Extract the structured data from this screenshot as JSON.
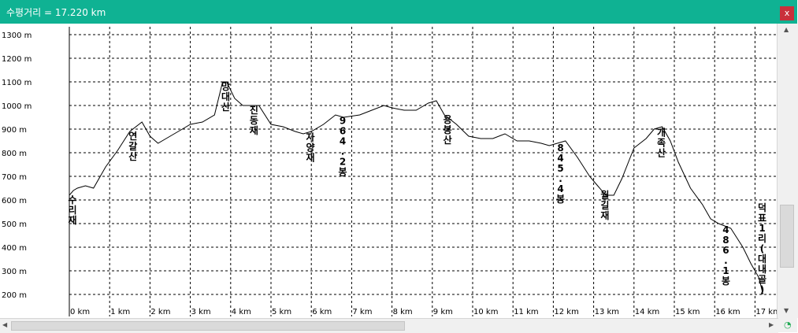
{
  "window": {
    "title": "수평거리 = 17.220 km",
    "close_label": "x",
    "accent_color": "#0fb293",
    "close_color": "#c9303b"
  },
  "chart_data": {
    "type": "line",
    "title": "",
    "xlabel": "",
    "ylabel": "",
    "x_unit": "km",
    "y_unit": "m",
    "xlim": [
      0,
      17.22
    ],
    "ylim": [
      180,
      1320
    ],
    "grid": true,
    "x_ticks": [
      0,
      1,
      2,
      3,
      4,
      5,
      6,
      7,
      8,
      9,
      10,
      11,
      12,
      13,
      14,
      15,
      16,
      17
    ],
    "x_tick_labels": [
      "0 km",
      "1 km",
      "2 km",
      "3 km",
      "4 km",
      "5 km",
      "6 km",
      "7 km",
      "8 km",
      "9 km",
      "10 km",
      "11 km",
      "12 km",
      "13 km",
      "14 km",
      "15 km",
      "16 km",
      "17 km"
    ],
    "y_ticks": [
      1300,
      1200,
      1100,
      1000,
      900,
      800,
      700,
      600,
      500,
      400,
      300,
      200
    ],
    "y_tick_labels": [
      "1300 m",
      "1200 m",
      "1100 m",
      "1000 m",
      "900 m",
      "800 m",
      "700 m",
      "600 m",
      "500 m",
      "400 m",
      "300 m",
      "200 m"
    ],
    "series": [
      {
        "line_color": "#000000",
        "x": [
          0,
          0.1,
          0.2,
          0.4,
          0.6,
          0.9,
          1.2,
          1.5,
          1.8,
          2.0,
          2.2,
          2.5,
          2.8,
          3.0,
          3.3,
          3.6,
          3.8,
          3.9,
          4.1,
          4.3,
          4.5,
          4.7,
          5.0,
          5.3,
          5.6,
          5.8,
          6.0,
          6.3,
          6.6,
          6.8,
          7.2,
          7.5,
          7.8,
          8.0,
          8.3,
          8.6,
          8.9,
          9.1,
          9.3,
          9.6,
          9.9,
          10.2,
          10.5,
          10.8,
          11.1,
          11.4,
          11.7,
          11.9,
          12.1,
          12.3,
          12.6,
          12.9,
          13.1,
          13.3,
          13.5,
          13.7,
          14.0,
          14.3,
          14.5,
          14.7,
          14.9,
          15.1,
          15.4,
          15.7,
          15.9,
          16.1,
          16.4,
          16.7,
          16.9,
          17.1,
          17.2
        ],
        "y": [
          620,
          640,
          650,
          660,
          650,
          740,
          810,
          890,
          930,
          870,
          840,
          870,
          900,
          920,
          930,
          960,
          1100,
          1100,
          1030,
          1000,
          1000,
          1000,
          920,
          910,
          890,
          880,
          890,
          920,
          960,
          950,
          960,
          980,
          1000,
          990,
          980,
          980,
          1010,
          1020,
          960,
          920,
          870,
          860,
          860,
          880,
          850,
          850,
          840,
          830,
          840,
          850,
          780,
          700,
          660,
          620,
          620,
          690,
          820,
          860,
          900,
          910,
          850,
          760,
          650,
          580,
          520,
          500,
          480,
          400,
          330,
          270,
          200
        ]
      }
    ],
    "annotations": [
      {
        "text": "수리재",
        "x": 0.0
      },
      {
        "text": "연갈산",
        "x": 1.5
      },
      {
        "text": "망대산",
        "x": 3.8
      },
      {
        "text": "진동재",
        "x": 4.5
      },
      {
        "text": "자양재",
        "x": 5.9
      },
      {
        "text": "964.2봉",
        "x": 6.7
      },
      {
        "text": "용봉산",
        "x": 9.3
      },
      {
        "text": "845.4봉",
        "x": 12.1
      },
      {
        "text": "월길재",
        "x": 13.2
      },
      {
        "text": "개족산",
        "x": 14.6
      },
      {
        "text": "486.1봉",
        "x": 16.2
      },
      {
        "text": "덕표1리(대내골)",
        "x": 17.1
      }
    ]
  },
  "scrollbars": {
    "up_arrow": "▲",
    "down_arrow": "▼",
    "left_arrow": "◀",
    "right_arrow": "▶",
    "corner_icon": "◔"
  }
}
